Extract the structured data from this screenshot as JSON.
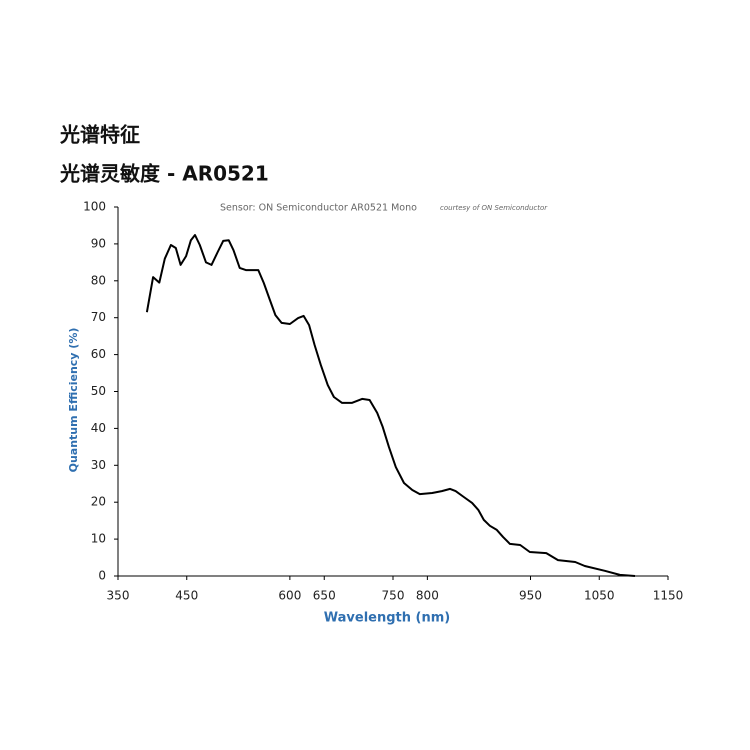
{
  "header": {
    "title": "光谱特征",
    "subtitle": "光谱灵敏度 - AR0521"
  },
  "chart_data": {
    "type": "line",
    "title": "Sensor: ON Semiconductor AR0521 Mono",
    "annotation": "courtesy of ON Semiconductor",
    "x_label": "Wavelength (nm)",
    "y_label": "Quantum Efficiency (%)",
    "xlim": [
      350,
      1150
    ],
    "xticks": [
      350,
      450,
      600,
      650,
      750,
      800,
      950,
      1050,
      1150
    ],
    "ylim": [
      0,
      100
    ],
    "yticks": [
      0,
      10,
      20,
      30,
      40,
      50,
      60,
      70,
      80,
      90,
      100
    ],
    "grid": false,
    "series": [
      {
        "name": "AR0521 Mono",
        "color": "#000000",
        "x": [
          392,
          401,
          410,
          418,
          427,
          434,
          441,
          449,
          456,
          462,
          469,
          478,
          486,
          495,
          503,
          511,
          518,
          527,
          536,
          554,
          562,
          571,
          579,
          588,
          600,
          612,
          620,
          628,
          636,
          645,
          655,
          664,
          676,
          690,
          705,
          716,
          727,
          735,
          744,
          754,
          766,
          778,
          789,
          807,
          821,
          833,
          841,
          853,
          865,
          874,
          882,
          891,
          901,
          910,
          920,
          935,
          949,
          973,
          990,
          1015,
          1029,
          1058,
          1080,
          1102
        ],
        "values": [
          71.5,
          81,
          79.5,
          86,
          89.7,
          88.9,
          84.3,
          86.7,
          91,
          92.4,
          89.7,
          85,
          84.3,
          87.8,
          90.8,
          91,
          88.3,
          83.5,
          82.9,
          82.9,
          79.4,
          74.8,
          70.7,
          68.6,
          68.3,
          69.9,
          70.5,
          68,
          62.6,
          57.2,
          51.8,
          48.5,
          46.9,
          46.9,
          48,
          47.7,
          44.2,
          40.4,
          35,
          29.5,
          25.2,
          23.3,
          22.2,
          22.5,
          23,
          23.6,
          23,
          21.4,
          19.8,
          17.9,
          15.2,
          13.6,
          12.5,
          10.6,
          8.7,
          8.4,
          6.5,
          6.2,
          4.3,
          3.8,
          2.7,
          1.4,
          0.3,
          0
        ]
      }
    ]
  }
}
